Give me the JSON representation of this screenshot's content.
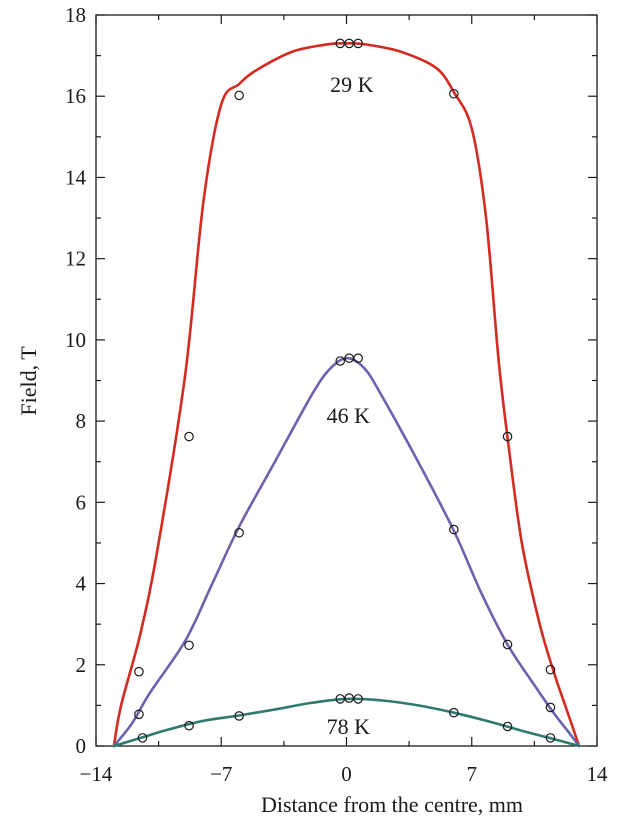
{
  "chart_data": {
    "type": "line",
    "title": "",
    "xlabel": "Distance from the centre, mm",
    "ylabel": "Field, T",
    "xlim": [
      -14,
      14
    ],
    "ylim": [
      0,
      18
    ],
    "xticks": [
      -14,
      -7,
      0,
      7,
      14
    ],
    "xtick_labels": [
      "−14",
      "−7",
      "0",
      "7",
      "14"
    ],
    "yticks": [
      0,
      2,
      4,
      6,
      8,
      10,
      12,
      14,
      16,
      18
    ],
    "ytick_labels": [
      "0",
      "2",
      "4",
      "6",
      "8",
      "10",
      "12",
      "14",
      "16",
      "18"
    ],
    "grid": false,
    "legend": "none",
    "series": [
      {
        "name": "29 K",
        "color": "#d42a22",
        "curve": [
          [
            -13,
            0
          ],
          [
            -12.6,
            1
          ],
          [
            -11.5,
            2.8
          ],
          [
            -10.5,
            5
          ],
          [
            -9,
            9.2
          ],
          [
            -8,
            13.4
          ],
          [
            -7,
            15.8
          ],
          [
            -6,
            16.3
          ],
          [
            -5,
            16.65
          ],
          [
            -3,
            17.1
          ],
          [
            -1,
            17.28
          ],
          [
            0,
            17.3
          ],
          [
            1,
            17.28
          ],
          [
            3,
            17.1
          ],
          [
            5,
            16.7
          ],
          [
            6,
            16.1
          ],
          [
            7,
            15.2
          ],
          [
            7.8,
            13
          ],
          [
            8.5,
            9.5
          ],
          [
            9,
            7.6
          ],
          [
            9.8,
            5
          ],
          [
            10.8,
            3
          ],
          [
            11.6,
            1.8
          ],
          [
            12.3,
            0.9
          ],
          [
            13,
            0
          ]
        ],
        "points": [
          [
            -11.6,
            1.83
          ],
          [
            -8.8,
            7.62
          ],
          [
            -6,
            16.02
          ],
          [
            -0.35,
            17.3
          ],
          [
            0.15,
            17.3
          ],
          [
            0.65,
            17.3
          ],
          [
            6,
            16.06
          ],
          [
            9,
            7.62
          ],
          [
            11.4,
            1.88
          ]
        ]
      },
      {
        "name": "46 K",
        "color": "#6a63ad",
        "curve": [
          [
            -13,
            0
          ],
          [
            -12,
            0.55
          ],
          [
            -11,
            1.3
          ],
          [
            -9,
            2.6
          ],
          [
            -7.5,
            4
          ],
          [
            -6,
            5.4
          ],
          [
            -4,
            7
          ],
          [
            -2,
            8.6
          ],
          [
            -1,
            9.25
          ],
          [
            0,
            9.55
          ],
          [
            1,
            9.3
          ],
          [
            2,
            8.6
          ],
          [
            4,
            7
          ],
          [
            6,
            5.3
          ],
          [
            7.5,
            3.8
          ],
          [
            9,
            2.5
          ],
          [
            10.5,
            1.5
          ],
          [
            11.6,
            0.8
          ],
          [
            12.4,
            0.35
          ],
          [
            13,
            0
          ]
        ],
        "points": [
          [
            -11.6,
            0.78
          ],
          [
            -8.8,
            2.48
          ],
          [
            -6,
            5.25
          ],
          [
            -0.35,
            9.48
          ],
          [
            0.15,
            9.55
          ],
          [
            0.65,
            9.55
          ],
          [
            6,
            5.33
          ],
          [
            9,
            2.5
          ],
          [
            11.4,
            0.95
          ]
        ]
      },
      {
        "name": "78 K",
        "color": "#2d7a72",
        "curve": [
          [
            -13,
            0
          ],
          [
            -11.5,
            0.2
          ],
          [
            -10,
            0.4
          ],
          [
            -8,
            0.62
          ],
          [
            -6,
            0.75
          ],
          [
            -4,
            0.9
          ],
          [
            -2,
            1.06
          ],
          [
            0,
            1.16
          ],
          [
            2,
            1.12
          ],
          [
            4,
            1.0
          ],
          [
            6,
            0.82
          ],
          [
            8,
            0.6
          ],
          [
            10,
            0.35
          ],
          [
            11.5,
            0.18
          ],
          [
            13,
            0
          ]
        ],
        "points": [
          [
            -11.4,
            0.2
          ],
          [
            -8.8,
            0.5
          ],
          [
            -6,
            0.74
          ],
          [
            -0.35,
            1.16
          ],
          [
            0.15,
            1.18
          ],
          [
            0.65,
            1.16
          ],
          [
            6,
            0.82
          ],
          [
            9,
            0.48
          ],
          [
            11.4,
            0.2
          ]
        ]
      }
    ],
    "annotations": [
      {
        "text": "29 K",
        "x": 0.3,
        "y": 16.1
      },
      {
        "text": "46 K",
        "x": 0.1,
        "y": 7.95
      },
      {
        "text": "78 K",
        "x": 0.1,
        "y": 0.3
      }
    ]
  }
}
